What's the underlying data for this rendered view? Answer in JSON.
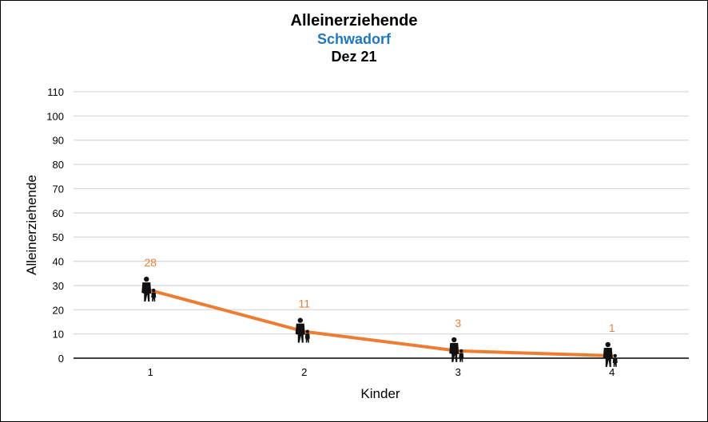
{
  "colors": {
    "line": "#ed7d31",
    "data_label": "#ed7d31",
    "subtitle": "#1f77c4",
    "gridline": "#d9d9d9",
    "text": "#000000"
  },
  "chart_data": {
    "type": "line",
    "title": "Alleinerziehende",
    "subtitle": "Schwadorf",
    "date": "Dez 21",
    "xlabel": "Kinder",
    "ylabel": "Alleinerziehende",
    "categories": [
      "1",
      "2",
      "3",
      "4"
    ],
    "series": [
      {
        "values": [
          28,
          11,
          3,
          1
        ],
        "marker_icon": "parent-child-icon"
      }
    ],
    "ylim": [
      0,
      110
    ],
    "yticks": [
      0,
      10,
      20,
      30,
      40,
      50,
      60,
      70,
      80,
      90,
      100,
      110
    ],
    "grid": true,
    "legend": "none",
    "data_labels": [
      "28",
      "11",
      "3",
      "1"
    ]
  }
}
